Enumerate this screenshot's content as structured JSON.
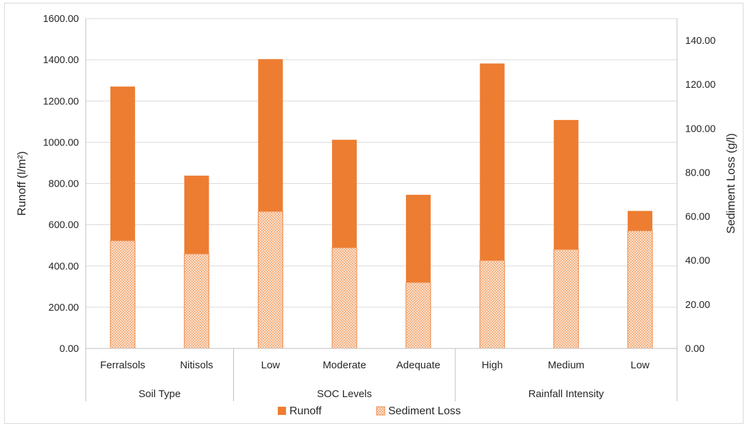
{
  "chart_data": {
    "type": "bar",
    "groups": [
      {
        "name": "Soil Type",
        "categories": [
          "Ferralsols",
          "Nitisols"
        ]
      },
      {
        "name": "SOC Levels",
        "categories": [
          "Low",
          "Moderate",
          "Adequate"
        ]
      },
      {
        "name": "Rainfall Intensity",
        "categories": [
          "High",
          "Medium",
          "Low"
        ]
      }
    ],
    "categories": [
      "Ferralsols",
      "Nitisols",
      "Low",
      "Moderate",
      "Adequate",
      "High",
      "Medium",
      "Low"
    ],
    "series": [
      {
        "name": "Runoff",
        "axis": "left",
        "color": "#ed7d31",
        "pattern": "solid",
        "values": [
          1270,
          838,
          1403,
          1012,
          745,
          1382,
          1108,
          667
        ]
      },
      {
        "name": "Sediment Loss",
        "axis": "right",
        "color": "#f4b183",
        "pattern": "checkered",
        "values": [
          49,
          43,
          62.3,
          45.8,
          30,
          40,
          45,
          53.5
        ]
      }
    ],
    "ylabel": "Runoff (l/m²)",
    "y2label": "Sediment Loss (g/l)",
    "ylim": [
      0,
      1600
    ],
    "y2lim": [
      0,
      150
    ],
    "yticks": [
      "0.00",
      "200.00",
      "400.00",
      "600.00",
      "800.00",
      "1000.00",
      "1200.00",
      "1400.00",
      "1600.00"
    ],
    "y2ticks": [
      "0.00",
      "20.00",
      "40.00",
      "60.00",
      "80.00",
      "100.00",
      "120.00",
      "140.00"
    ],
    "legend_position": "bottom",
    "grid": true
  }
}
